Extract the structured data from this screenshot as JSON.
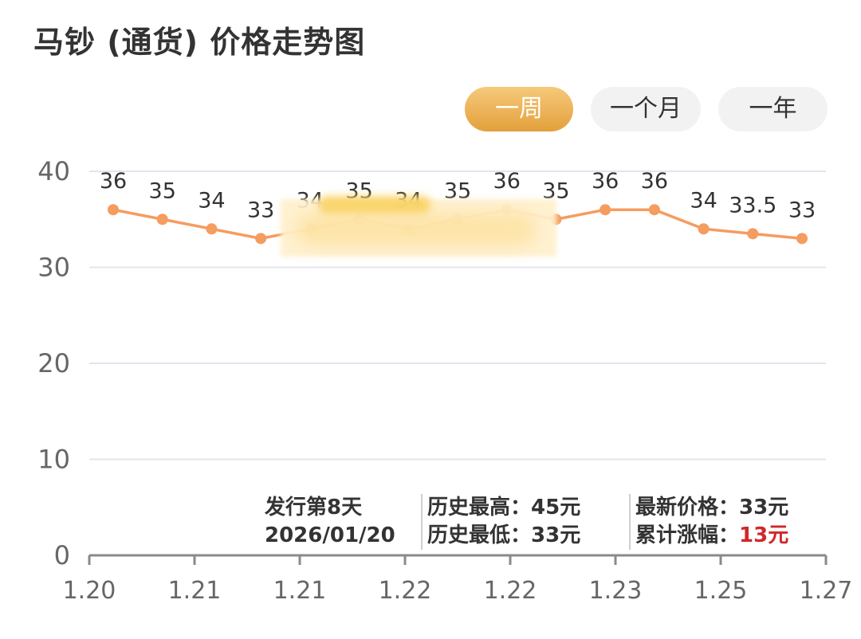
{
  "title": "马钞 (通货) 价格走势图",
  "tabs": [
    {
      "label": "一周",
      "active": true
    },
    {
      "label": "一个月",
      "active": false
    },
    {
      "label": "一年",
      "active": false
    }
  ],
  "colors": {
    "accent": "#e3a03c",
    "line": "#f59c5f",
    "grid": "#e3e4ee",
    "rise": "#d0282b"
  },
  "chart_data": {
    "type": "line",
    "categories": [
      "1.20",
      "1.20",
      "1.21",
      "1.21",
      "1.21",
      "1.21",
      "1.22",
      "1.22",
      "1.22",
      "1.23",
      "1.23",
      "1.25",
      "1.25",
      "1.27",
      "1.27"
    ],
    "xtick_labels": [
      "1.20",
      "1.21",
      "1.21",
      "1.22",
      "1.22",
      "1.23",
      "1.25",
      "1.27"
    ],
    "values": [
      36,
      35,
      34,
      33,
      34,
      35,
      34,
      35,
      36,
      35,
      36,
      36,
      34,
      33.5,
      33
    ],
    "ylim": [
      0,
      40
    ],
    "yticks": [
      0,
      10,
      20,
      30,
      40
    ],
    "grid": true,
    "xlabel": "",
    "ylabel": ""
  },
  "info": {
    "issue_days": "发行第8天",
    "issue_date": "2026/01/20",
    "hist_high_label": "历史最高：",
    "hist_high_value": "45元",
    "hist_low_label": "历史最低：",
    "hist_low_value": "33元",
    "latest_label": "最新价格：",
    "latest_value": "33元",
    "cum_label": "累计涨幅：",
    "cum_value": "13元"
  }
}
